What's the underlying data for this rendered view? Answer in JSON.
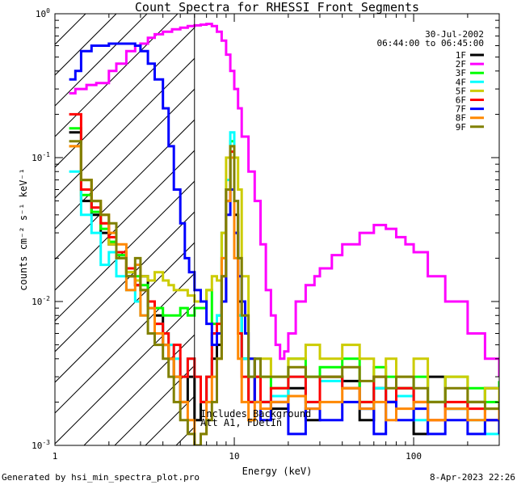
{
  "chart_data": {
    "type": "line",
    "title": "Count Spectra for RHESSI Front Segments",
    "xlabel": "Energy (keV)",
    "ylabel": "counts cm⁻² s⁻¹ keV⁻¹",
    "xscale": "log",
    "yscale": "log",
    "xlim": [
      1,
      300
    ],
    "ylim": [
      0.001,
      1
    ],
    "x_ticks": [
      {
        "value": 1,
        "label": "1"
      },
      {
        "value": 10,
        "label": "10"
      },
      {
        "value": 100,
        "label": "100"
      }
    ],
    "y_ticks": [
      {
        "value": 0.001,
        "base": "10",
        "exp": "-3"
      },
      {
        "value": 0.01,
        "base": "10",
        "exp": "-2"
      },
      {
        "value": 0.1,
        "base": "10",
        "exp": "-1"
      },
      {
        "value": 1,
        "base": "10",
        "exp": "0"
      }
    ],
    "date": "30-Jul-2002",
    "time_range": "06:44:00 to 06:45:00",
    "annotations": [
      "Includes Background",
      "Att A1, FDetIn"
    ],
    "shaded_region": {
      "from": 1,
      "to": 6,
      "pattern": "diagonal-hatch"
    },
    "marker_energy": 6,
    "legend_position": "top-right",
    "series": [
      {
        "name": "1F",
        "color": "#000000",
        "x": [
          1.2,
          1.4,
          1.6,
          1.8,
          2,
          2.2,
          2.5,
          2.8,
          3,
          3.3,
          3.6,
          4,
          4.3,
          4.6,
          5,
          5.5,
          6,
          6.5,
          7,
          7.5,
          8,
          8.5,
          9,
          9.5,
          10,
          10.5,
          11,
          12,
          13,
          14,
          16,
          20,
          25,
          30,
          40,
          50,
          60,
          70,
          80,
          100,
          120,
          150,
          200,
          250,
          300
        ],
        "y": [
          0.15,
          0.05,
          0.04,
          0.03,
          0.025,
          0.02,
          0.015,
          0.013,
          0.015,
          0.009,
          0.008,
          0.005,
          0.004,
          0.003,
          0.002,
          0.003,
          0.0015,
          0.002,
          0.003,
          0.004,
          0.005,
          0.01,
          0.05,
          0.1,
          0.04,
          0.01,
          0.004,
          0.002,
          0.003,
          0.002,
          0.0018,
          0.0025,
          0.0015,
          0.003,
          0.0028,
          0.0015,
          0.0025,
          0.002,
          0.0025,
          0.0012,
          0.003,
          0.0018,
          0.002,
          0.0025,
          0.0018
        ]
      },
      {
        "name": "2F",
        "color": "#ff00ff",
        "x": [
          1.2,
          1.3,
          1.5,
          1.7,
          2,
          2.2,
          2.5,
          2.8,
          3,
          3.3,
          3.6,
          4,
          4.5,
          5,
          5.5,
          6,
          6.5,
          7,
          7.5,
          8,
          8.5,
          9,
          9.5,
          10,
          10.5,
          11,
          12,
          13,
          14,
          15,
          16,
          17,
          18,
          19,
          20,
          22,
          25,
          28,
          30,
          35,
          40,
          50,
          60,
          70,
          80,
          90,
          100,
          120,
          150,
          200,
          250,
          300
        ],
        "y": [
          0.28,
          0.3,
          0.32,
          0.33,
          0.4,
          0.45,
          0.55,
          0.6,
          0.62,
          0.68,
          0.72,
          0.75,
          0.78,
          0.8,
          0.82,
          0.83,
          0.84,
          0.85,
          0.82,
          0.75,
          0.65,
          0.52,
          0.4,
          0.3,
          0.22,
          0.14,
          0.08,
          0.05,
          0.025,
          0.012,
          0.008,
          0.005,
          0.004,
          0.0045,
          0.006,
          0.01,
          0.013,
          0.015,
          0.017,
          0.021,
          0.025,
          0.03,
          0.034,
          0.032,
          0.028,
          0.025,
          0.022,
          0.015,
          0.01,
          0.006,
          0.004,
          0.003
        ]
      },
      {
        "name": "3F",
        "color": "#00ff00",
        "x": [
          1.2,
          1.4,
          1.6,
          1.8,
          2,
          2.2,
          2.5,
          2.8,
          3,
          3.3,
          3.6,
          4,
          4.3,
          4.6,
          5,
          5.5,
          6,
          6.5,
          7,
          7.5,
          8,
          8.5,
          9,
          9.5,
          10,
          10.5,
          11,
          12,
          13,
          14,
          16,
          20,
          25,
          30,
          40,
          50,
          60,
          70,
          80,
          100,
          120,
          150,
          200,
          250,
          300
        ],
        "y": [
          0.16,
          0.055,
          0.042,
          0.032,
          0.026,
          0.021,
          0.016,
          0.015,
          0.013,
          0.01,
          0.009,
          0.008,
          0.008,
          0.008,
          0.009,
          0.008,
          0.009,
          0.009,
          0.012,
          0.007,
          0.008,
          0.03,
          0.06,
          0.13,
          0.03,
          0.008,
          0.004,
          0.003,
          0.004,
          0.003,
          0.0025,
          0.004,
          0.003,
          0.0035,
          0.004,
          0.002,
          0.0035,
          0.003,
          0.0025,
          0.003,
          0.002,
          0.003,
          0.0025,
          0.002,
          0.0028
        ]
      },
      {
        "name": "4F",
        "color": "#00ffff",
        "x": [
          1.2,
          1.4,
          1.6,
          1.8,
          2,
          2.2,
          2.5,
          2.8,
          3,
          3.3,
          3.6,
          4,
          4.3,
          4.6,
          5,
          5.5,
          6,
          6.5,
          7,
          7.5,
          8,
          8.5,
          9,
          9.5,
          10,
          10.5,
          11,
          12,
          13,
          14,
          16,
          20,
          25,
          30,
          40,
          50,
          60,
          70,
          80,
          100,
          120,
          150,
          200,
          250,
          300
        ],
        "y": [
          0.08,
          0.04,
          0.03,
          0.018,
          0.022,
          0.015,
          0.012,
          0.01,
          0.008,
          0.009,
          0.007,
          0.006,
          0.005,
          0.004,
          0.003,
          0.004,
          0.003,
          0.002,
          0.003,
          0.006,
          0.008,
          0.02,
          0.07,
          0.15,
          0.03,
          0.008,
          0.004,
          0.002,
          0.003,
          0.002,
          0.0022,
          0.003,
          0.002,
          0.0028,
          0.0025,
          0.0018,
          0.0025,
          0.002,
          0.0022,
          0.0015,
          0.002,
          0.0018,
          0.0015,
          0.0012,
          0.0015
        ]
      },
      {
        "name": "5F",
        "color": "#cccc00",
        "x": [
          1.2,
          1.4,
          1.6,
          1.8,
          2,
          2.2,
          2.5,
          2.8,
          3,
          3.3,
          3.6,
          4,
          4.3,
          4.6,
          5,
          5.5,
          6,
          6.5,
          7,
          7.5,
          8,
          8.5,
          9,
          9.5,
          10,
          10.5,
          11,
          12,
          13,
          14,
          16,
          20,
          25,
          30,
          40,
          50,
          60,
          70,
          80,
          100,
          120,
          150,
          200,
          250,
          300
        ],
        "y": [
          0.12,
          0.07,
          0.05,
          0.035,
          0.025,
          0.02,
          0.016,
          0.014,
          0.015,
          0.014,
          0.016,
          0.014,
          0.013,
          0.012,
          0.012,
          0.011,
          0.01,
          0.01,
          0.012,
          0.015,
          0.014,
          0.03,
          0.1,
          0.12,
          0.1,
          0.06,
          0.015,
          0.004,
          0.003,
          0.004,
          0.003,
          0.004,
          0.005,
          0.004,
          0.005,
          0.004,
          0.003,
          0.004,
          0.003,
          0.004,
          0.002,
          0.003,
          0.002,
          0.0025,
          0.002
        ]
      },
      {
        "name": "6F",
        "color": "#ff0000",
        "x": [
          1.2,
          1.4,
          1.6,
          1.8,
          2,
          2.2,
          2.5,
          2.8,
          3,
          3.3,
          3.6,
          4,
          4.3,
          4.6,
          5,
          5.5,
          6,
          6.5,
          7,
          7.5,
          8,
          8.5,
          9,
          9.5,
          10,
          10.5,
          11,
          12,
          13,
          14,
          16,
          20,
          25,
          30,
          40,
          50,
          60,
          70,
          80,
          100,
          120,
          150,
          200,
          250,
          300
        ],
        "y": [
          0.2,
          0.06,
          0.045,
          0.035,
          0.028,
          0.022,
          0.017,
          0.013,
          0.012,
          0.01,
          0.007,
          0.006,
          0.004,
          0.005,
          0.003,
          0.004,
          0.003,
          0.002,
          0.003,
          0.006,
          0.007,
          0.015,
          0.06,
          0.11,
          0.03,
          0.006,
          0.003,
          0.002,
          0.003,
          0.002,
          0.0025,
          0.003,
          0.002,
          0.003,
          0.0025,
          0.002,
          0.003,
          0.002,
          0.0025,
          0.002,
          0.0015,
          0.002,
          0.0018,
          0.0015,
          0.0012
        ]
      },
      {
        "name": "7F",
        "color": "#0000ff",
        "x": [
          1.2,
          1.3,
          1.4,
          1.6,
          1.8,
          2,
          2.2,
          2.5,
          2.8,
          3,
          3.3,
          3.6,
          4,
          4.3,
          4.6,
          5,
          5.3,
          5.6,
          6,
          6.5,
          7,
          7.5,
          8,
          8.5,
          9,
          9.5,
          10,
          10.5,
          11,
          11.5,
          12,
          13,
          14,
          16,
          20,
          25,
          30,
          40,
          50,
          60,
          70,
          80,
          100,
          120,
          150,
          200,
          250,
          300
        ],
        "y": [
          0.35,
          0.4,
          0.55,
          0.6,
          0.6,
          0.62,
          0.62,
          0.62,
          0.6,
          0.55,
          0.45,
          0.35,
          0.22,
          0.12,
          0.06,
          0.035,
          0.02,
          0.016,
          0.012,
          0.01,
          0.007,
          0.005,
          0.006,
          0.01,
          0.04,
          0.06,
          0.03,
          0.015,
          0.01,
          0.006,
          0.004,
          0.002,
          0.0015,
          0.002,
          0.0012,
          0.0018,
          0.0015,
          0.002,
          0.0018,
          0.0012,
          0.002,
          0.0015,
          0.0018,
          0.0012,
          0.0015,
          0.0012,
          0.0015,
          0.0012
        ]
      },
      {
        "name": "8F",
        "color": "#ff8800",
        "x": [
          1.2,
          1.4,
          1.6,
          1.8,
          2,
          2.2,
          2.5,
          2.8,
          3,
          3.3,
          3.6,
          4,
          4.3,
          4.6,
          5,
          5.5,
          6,
          6.5,
          7,
          7.5,
          8,
          8.5,
          9,
          9.5,
          10,
          10.5,
          11,
          12,
          13,
          14,
          16,
          20,
          25,
          30,
          40,
          50,
          60,
          70,
          80,
          100,
          120,
          150,
          200,
          250,
          300
        ],
        "y": [
          0.12,
          0.07,
          0.05,
          0.04,
          0.03,
          0.025,
          0.012,
          0.018,
          0.008,
          0.009,
          0.006,
          0.005,
          0.004,
          0.003,
          0.002,
          0.0015,
          0.001,
          0.0012,
          0.002,
          0.003,
          0.004,
          0.02,
          0.05,
          0.1,
          0.02,
          0.004,
          0.002,
          0.0015,
          0.002,
          0.0018,
          0.002,
          0.0022,
          0.0018,
          0.002,
          0.0025,
          0.0018,
          0.002,
          0.0015,
          0.0018,
          0.002,
          0.0015,
          0.0018,
          0.0015,
          0.0018,
          0.0015
        ]
      },
      {
        "name": "9F",
        "color": "#808000",
        "x": [
          1.2,
          1.4,
          1.6,
          1.8,
          2,
          2.2,
          2.5,
          2.8,
          3,
          3.3,
          3.6,
          4,
          4.3,
          4.6,
          5,
          5.5,
          6,
          6.5,
          7,
          7.5,
          8,
          8.5,
          9,
          9.5,
          10,
          10.5,
          11,
          12,
          13,
          14,
          16,
          20,
          25,
          30,
          40,
          50,
          60,
          70,
          80,
          100,
          120,
          150,
          200,
          250,
          300
        ],
        "y": [
          0.13,
          0.07,
          0.05,
          0.04,
          0.035,
          0.02,
          0.015,
          0.02,
          0.012,
          0.006,
          0.005,
          0.004,
          0.003,
          0.002,
          0.0015,
          0.0012,
          0.001,
          0.0012,
          0.0015,
          0.002,
          0.004,
          0.015,
          0.06,
          0.12,
          0.05,
          0.02,
          0.008,
          0.003,
          0.004,
          0.003,
          0.003,
          0.0035,
          0.003,
          0.003,
          0.0035,
          0.0028,
          0.003,
          0.0025,
          0.003,
          0.0025,
          0.002,
          0.0025,
          0.002,
          0.0018,
          0.002
        ]
      }
    ]
  },
  "footer": {
    "left": "Generated by hsi_min_spectra_plot.pro",
    "right": "8-Apr-2023 22:26"
  }
}
